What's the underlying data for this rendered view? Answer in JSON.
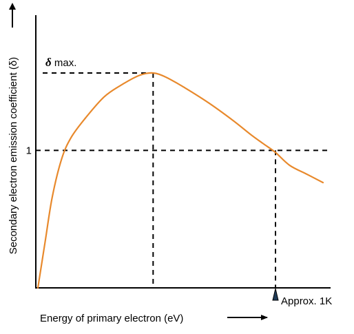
{
  "chart_data": {
    "type": "line",
    "title": "",
    "ylabel": "Secondary electron emission coefficient (δ)",
    "xlabel": "Energy of primary electron (eV)",
    "y_tick_label": "1",
    "peak_label_symbol": "δ",
    "peak_label_text": " max.",
    "x_marker_label": "Approx.  1K",
    "x_unit": "relative (marker = 1)",
    "y_unit": "relative (δ max = 1)",
    "xlim": [
      0,
      1.3
    ],
    "ylim": [
      0,
      1.3
    ],
    "reference_y": 0.64,
    "reference_x": 1.0,
    "peak": {
      "x": 0.485,
      "y": 1.0
    },
    "series": [
      {
        "color": "#E8892C",
        "x": [
          0,
          0.03,
          0.06,
          0.1,
          0.14,
          0.2,
          0.28,
          0.36,
          0.43,
          0.485,
          0.54,
          0.62,
          0.72,
          0.82,
          0.9,
          0.95,
          1.0,
          1.06,
          1.13,
          1.2
        ],
        "y": [
          0.0,
          0.21,
          0.42,
          0.6,
          0.7,
          0.79,
          0.89,
          0.95,
          0.99,
          1.0,
          0.98,
          0.93,
          0.86,
          0.78,
          0.71,
          0.67,
          0.63,
          0.57,
          0.53,
          0.49
        ]
      }
    ],
    "grid": false,
    "legend": "none"
  }
}
